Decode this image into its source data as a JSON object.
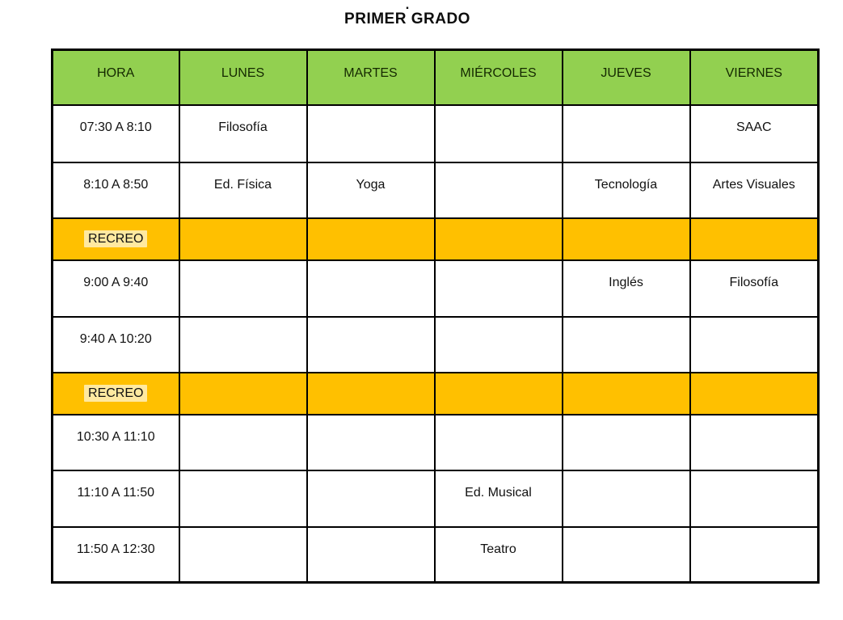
{
  "title": {
    "dot": ".",
    "text": "PRIMER GRADO"
  },
  "table": {
    "headers": [
      "HORA",
      "LUNES",
      "MARTES",
      "MIÉRCOLES",
      "JUEVES",
      "VIERNES"
    ],
    "rows": [
      {
        "type": "period",
        "time": "07:30 A 8:10",
        "subjects": [
          "Filosofía",
          "",
          "",
          "",
          "SAAC"
        ]
      },
      {
        "type": "period",
        "time": "8:10 A 8:50",
        "subjects": [
          "Ed. Física",
          "Yoga",
          "",
          "Tecnología",
          "Artes Visuales"
        ]
      },
      {
        "type": "recess",
        "time": "RECREO",
        "subjects": [
          "",
          "",
          "",
          "",
          ""
        ]
      },
      {
        "type": "period",
        "time": "9:00 A 9:40",
        "subjects": [
          "",
          "",
          "",
          "Inglés",
          "Filosofía"
        ]
      },
      {
        "type": "period",
        "time": "9:40 A 10:20",
        "subjects": [
          "",
          "",
          "",
          "",
          ""
        ]
      },
      {
        "type": "recess",
        "time": "RECREO",
        "subjects": [
          "",
          "",
          "",
          "",
          ""
        ]
      },
      {
        "type": "period",
        "time": "10:30 A 11:10",
        "subjects": [
          "",
          "",
          "",
          "",
          ""
        ]
      },
      {
        "type": "period",
        "time": "11:10 A 11:50",
        "subjects": [
          "",
          "",
          "Ed. Musical",
          "",
          ""
        ]
      },
      {
        "type": "period",
        "time": "11:50 A 12:30",
        "subjects": [
          "",
          "",
          "Teatro",
          "",
          ""
        ]
      }
    ]
  },
  "colors": {
    "header_bg": "#92D050",
    "recess_bg": "#FFC000",
    "recess_highlight": "#FFE9A0",
    "border": "#000000"
  }
}
